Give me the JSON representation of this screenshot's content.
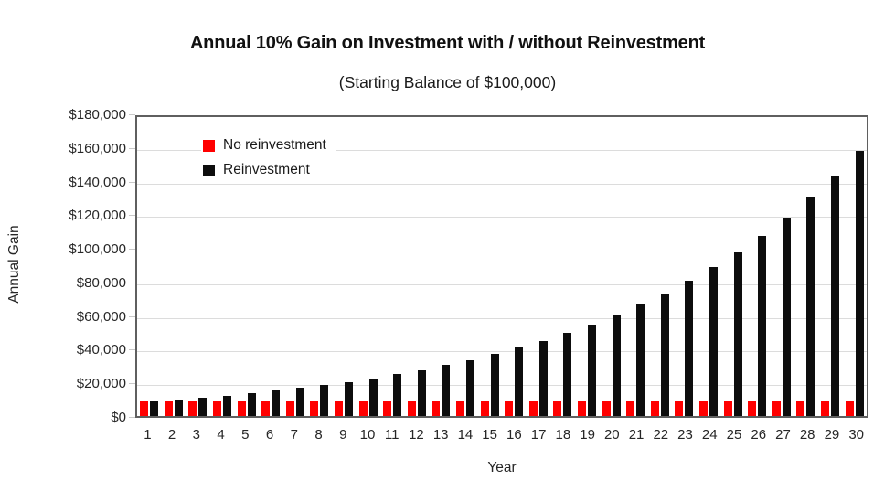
{
  "title": "Annual 10% Gain on Investment with / without Reinvestment",
  "subtitle": "(Starting Balance of $100,000)",
  "colors": {
    "no_reinvestment": "#ff0000",
    "reinvestment": "#0d0d0d",
    "gridline": "#dcdcdc",
    "frame": "#5f5f5f"
  },
  "chart_data": {
    "type": "bar",
    "title": "Annual 10% Gain on Investment with / without Reinvestment",
    "subtitle": "(Starting Balance of $100,000)",
    "xlabel": "Year",
    "ylabel": "Annual Gain",
    "ylim": [
      0,
      180000
    ],
    "ytick_step": 20000,
    "ytick_labels": [
      "$0",
      "$20,000",
      "$40,000",
      "$60,000",
      "$80,000",
      "$100,000",
      "$120,000",
      "$140,000",
      "$160,000",
      "$180,000"
    ],
    "grid": "horizontal",
    "legend_position": "top-left-inside",
    "categories": [
      1,
      2,
      3,
      4,
      5,
      6,
      7,
      8,
      9,
      10,
      11,
      12,
      13,
      14,
      15,
      16,
      17,
      18,
      19,
      20,
      21,
      22,
      23,
      24,
      25,
      26,
      27,
      28,
      29,
      30
    ],
    "series": [
      {
        "name": "No reinvestment",
        "color": "#ff0000",
        "values": [
          10000,
          10000,
          10000,
          10000,
          10000,
          10000,
          10000,
          10000,
          10000,
          10000,
          10000,
          10000,
          10000,
          10000,
          10000,
          10000,
          10000,
          10000,
          10000,
          10000,
          10000,
          10000,
          10000,
          10000,
          10000,
          10000,
          10000,
          10000,
          10000,
          10000
        ]
      },
      {
        "name": "Reinvestment",
        "color": "#0d0d0d",
        "values": [
          10000,
          11000,
          12100,
          13310,
          14641,
          16105,
          17716,
          19487,
          21436,
          23579,
          25937,
          28531,
          31384,
          34523,
          37975,
          41772,
          45950,
          50545,
          55599,
          61159,
          67275,
          74003,
          81403,
          89543,
          98497,
          108347,
          119182,
          131100,
          144210,
          158631
        ]
      }
    ]
  }
}
